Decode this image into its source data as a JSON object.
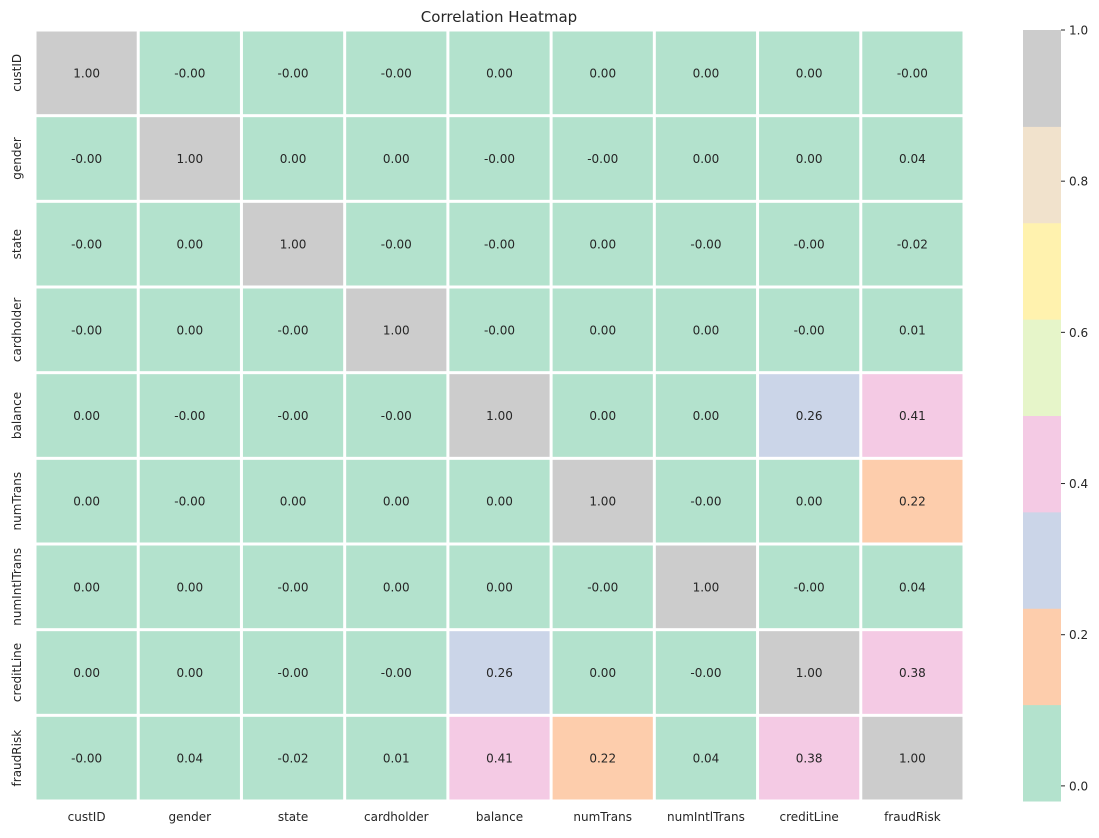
{
  "chart_data": {
    "type": "heatmap",
    "title": "Correlation Heatmap",
    "row_labels": [
      "custID",
      "gender",
      "state",
      "cardholder",
      "balance",
      "numTrans",
      "numIntlTrans",
      "creditLine",
      "fraudRisk"
    ],
    "col_labels": [
      "custID",
      "gender",
      "state",
      "cardholder",
      "balance",
      "numTrans",
      "numIntlTrans",
      "creditLine",
      "fraudRisk"
    ],
    "values": [
      [
        1.0,
        -0.0,
        -0.0,
        -0.0,
        0.0,
        0.0,
        0.0,
        0.0,
        -0.0
      ],
      [
        -0.0,
        1.0,
        0.0,
        0.0,
        -0.0,
        -0.0,
        0.0,
        0.0,
        0.04
      ],
      [
        -0.0,
        0.0,
        1.0,
        -0.0,
        -0.0,
        0.0,
        -0.0,
        -0.0,
        -0.02
      ],
      [
        -0.0,
        0.0,
        -0.0,
        1.0,
        -0.0,
        0.0,
        0.0,
        -0.0,
        0.01
      ],
      [
        0.0,
        -0.0,
        -0.0,
        -0.0,
        1.0,
        0.0,
        0.0,
        0.26,
        0.41
      ],
      [
        0.0,
        -0.0,
        0.0,
        0.0,
        0.0,
        1.0,
        -0.0,
        0.0,
        0.22
      ],
      [
        0.0,
        0.0,
        -0.0,
        0.0,
        0.0,
        -0.0,
        1.0,
        -0.0,
        0.04
      ],
      [
        0.0,
        0.0,
        -0.0,
        -0.0,
        0.26,
        0.0,
        -0.0,
        1.0,
        0.38
      ],
      [
        -0.0,
        0.04,
        -0.02,
        0.01,
        0.41,
        0.22,
        0.04,
        0.38,
        1.0
      ]
    ],
    "value_labels": [
      [
        "1.00",
        "-0.00",
        "-0.00",
        "-0.00",
        "0.00",
        "0.00",
        "0.00",
        "0.00",
        "-0.00"
      ],
      [
        "-0.00",
        "1.00",
        "0.00",
        "0.00",
        "-0.00",
        "-0.00",
        "0.00",
        "0.00",
        "0.04"
      ],
      [
        "-0.00",
        "0.00",
        "1.00",
        "-0.00",
        "-0.00",
        "0.00",
        "-0.00",
        "-0.00",
        "-0.02"
      ],
      [
        "-0.00",
        "0.00",
        "-0.00",
        "1.00",
        "-0.00",
        "0.00",
        "0.00",
        "-0.00",
        "0.01"
      ],
      [
        "0.00",
        "-0.00",
        "-0.00",
        "-0.00",
        "1.00",
        "0.00",
        "0.00",
        "0.26",
        "0.41"
      ],
      [
        "0.00",
        "-0.00",
        "0.00",
        "0.00",
        "0.00",
        "1.00",
        "-0.00",
        "0.00",
        "0.22"
      ],
      [
        "0.00",
        "0.00",
        "-0.00",
        "0.00",
        "0.00",
        "-0.00",
        "1.00",
        "-0.00",
        "0.04"
      ],
      [
        "0.00",
        "0.00",
        "-0.00",
        "-0.00",
        "0.26",
        "0.00",
        "-0.00",
        "1.00",
        "0.38"
      ],
      [
        "-0.00",
        "0.04",
        "-0.02",
        "0.01",
        "0.41",
        "0.22",
        "0.04",
        "0.38",
        "1.00"
      ]
    ],
    "colorbar": {
      "range": [
        -0.02,
        1.0
      ],
      "ticks": [
        0.0,
        0.2,
        0.4,
        0.6,
        0.8,
        1.0
      ],
      "tick_labels": [
        "0.0",
        "0.2",
        "0.4",
        "0.6",
        "0.8",
        "1.0"
      ],
      "colors": [
        "#b3e2cd",
        "#fdcdac",
        "#cbd5e8",
        "#f4cae4",
        "#e6f5c9",
        "#fff2ae",
        "#f1e2cc",
        "#cccccc"
      ]
    },
    "grid": false,
    "cell_separator_color": "#ffffff"
  }
}
